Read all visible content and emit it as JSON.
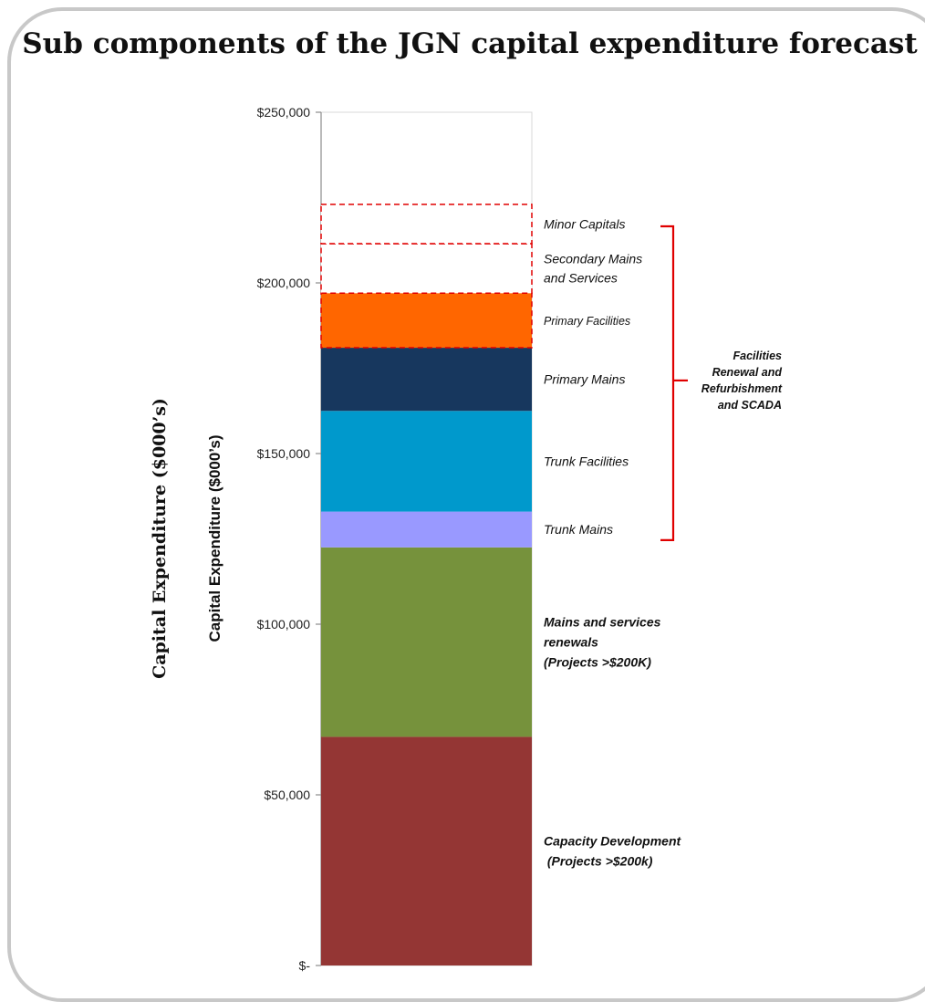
{
  "title": "Sub components of the JGN capital expenditure forecast",
  "chart_data": {
    "type": "bar",
    "stacked": true,
    "title": "Sub components of the JGN capital expenditure forecast",
    "ylabel": "Capital Expenditure ($000’s)",
    "ylabel_secondary": "Capital Expenditure ($000’s)",
    "ylim": [
      0,
      250000
    ],
    "yticks": [
      {
        "value": 0,
        "label": "$-"
      },
      {
        "value": 50000,
        "label": "$50,000"
      },
      {
        "value": 100000,
        "label": "$100,000"
      },
      {
        "value": 150000,
        "label": "$150,000"
      },
      {
        "value": 200000,
        "label": "$200,000"
      },
      {
        "value": 250000,
        "label": "$250,000"
      }
    ],
    "grid": false,
    "series": [
      {
        "name": "Capacity Development (Projects >$200k)",
        "label_lines": [
          "Capacity Development",
          " (Projects >$200k)"
        ],
        "value": 67000,
        "color": "#943634",
        "style": "solid",
        "label_style": "bold"
      },
      {
        "name": "Mains and services renewals (Projects >$200K)",
        "label_lines": [
          "Mains and services",
          "renewals",
          "(Projects >$200K)"
        ],
        "value": 55500,
        "color": "#76923c",
        "style": "solid",
        "label_style": "bold"
      },
      {
        "name": "Trunk Mains",
        "label_lines": [
          "Trunk Mains"
        ],
        "value": 10500,
        "color": "#9999ff",
        "style": "solid",
        "label_style": "normal"
      },
      {
        "name": "Trunk Facilities",
        "label_lines": [
          "Trunk Facilities"
        ],
        "value": 29500,
        "color": "#0099cc",
        "style": "solid",
        "label_style": "normal"
      },
      {
        "name": "Primary Mains",
        "label_lines": [
          "Primary Mains"
        ],
        "value": 18500,
        "color": "#17375e",
        "style": "solid",
        "label_style": "normal"
      },
      {
        "name": "Primary Facilities",
        "label_lines": [
          "Primary Facilities"
        ],
        "value": 16000,
        "color": "#ff6600",
        "style": "dashed-border",
        "label_style": "small"
      },
      {
        "name": "Secondary Mains and Services",
        "label_lines": [
          "Secondary Mains",
          "and Services"
        ],
        "value": 14500,
        "color": "#ffffff",
        "style": "dashed",
        "label_style": "normal"
      },
      {
        "name": "Minor Capitals",
        "label_lines": [
          "Minor Capitals"
        ],
        "value": 11500,
        "color": "#ffffff",
        "style": "dashed",
        "label_style": "normal"
      }
    ],
    "bracket": {
      "label_lines": [
        "Facilities",
        "Renewal and",
        "Refurbishment",
        "and SCADA"
      ],
      "from_series": "Trunk Mains",
      "to_series": "Minor Capitals",
      "color": "#e00000"
    }
  }
}
